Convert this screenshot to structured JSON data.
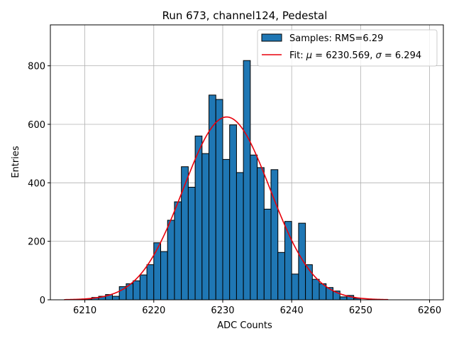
{
  "chart_data": {
    "type": "bar",
    "title": "Run 673, channel124, Pedestal",
    "xlabel": "ADC Counts",
    "ylabel": "Entries",
    "xlim": [
      6205,
      6262
    ],
    "ylim": [
      0,
      940
    ],
    "xticks": [
      6210,
      6220,
      6230,
      6240,
      6250,
      6260
    ],
    "yticks": [
      0,
      200,
      400,
      600,
      800
    ],
    "grid": true,
    "legend_position": "top-right",
    "bin_width": 1,
    "bins": [
      {
        "x": 6210,
        "value": 3
      },
      {
        "x": 6211,
        "value": 8
      },
      {
        "x": 6212,
        "value": 12
      },
      {
        "x": 6213,
        "value": 18
      },
      {
        "x": 6214,
        "value": 12
      },
      {
        "x": 6215,
        "value": 45
      },
      {
        "x": 6216,
        "value": 55
      },
      {
        "x": 6217,
        "value": 65
      },
      {
        "x": 6218,
        "value": 85
      },
      {
        "x": 6219,
        "value": 120
      },
      {
        "x": 6220,
        "value": 195
      },
      {
        "x": 6221,
        "value": 165
      },
      {
        "x": 6222,
        "value": 272
      },
      {
        "x": 6223,
        "value": 335
      },
      {
        "x": 6224,
        "value": 455
      },
      {
        "x": 6225,
        "value": 385
      },
      {
        "x": 6226,
        "value": 560
      },
      {
        "x": 6227,
        "value": 500
      },
      {
        "x": 6228,
        "value": 700
      },
      {
        "x": 6229,
        "value": 685
      },
      {
        "x": 6230,
        "value": 480
      },
      {
        "x": 6231,
        "value": 598
      },
      {
        "x": 6232,
        "value": 435
      },
      {
        "x": 6233,
        "value": 818
      },
      {
        "x": 6234,
        "value": 495
      },
      {
        "x": 6235,
        "value": 452
      },
      {
        "x": 6236,
        "value": 310
      },
      {
        "x": 6237,
        "value": 445
      },
      {
        "x": 6238,
        "value": 162
      },
      {
        "x": 6239,
        "value": 268
      },
      {
        "x": 6240,
        "value": 88
      },
      {
        "x": 6241,
        "value": 262
      },
      {
        "x": 6242,
        "value": 120
      },
      {
        "x": 6243,
        "value": 70
      },
      {
        "x": 6244,
        "value": 55
      },
      {
        "x": 6245,
        "value": 42
      },
      {
        "x": 6246,
        "value": 30
      },
      {
        "x": 6247,
        "value": 10
      },
      {
        "x": 6248,
        "value": 15
      },
      {
        "x": 6249,
        "value": 5
      }
    ],
    "fit": {
      "mu": 6230.569,
      "sigma": 6.294,
      "amplitude": 625,
      "x_range": [
        6207,
        6254
      ]
    },
    "legend": {
      "samples_label": "Samples: RMS=6.29",
      "fit_prefix": "Fit: ",
      "mu_symbol": "μ",
      "mu_text": " = 6230.569, ",
      "sigma_symbol": "σ",
      "sigma_text": " = 6.294"
    },
    "colors": {
      "bar": "#1f77b4",
      "fit": "#e8000b"
    }
  }
}
